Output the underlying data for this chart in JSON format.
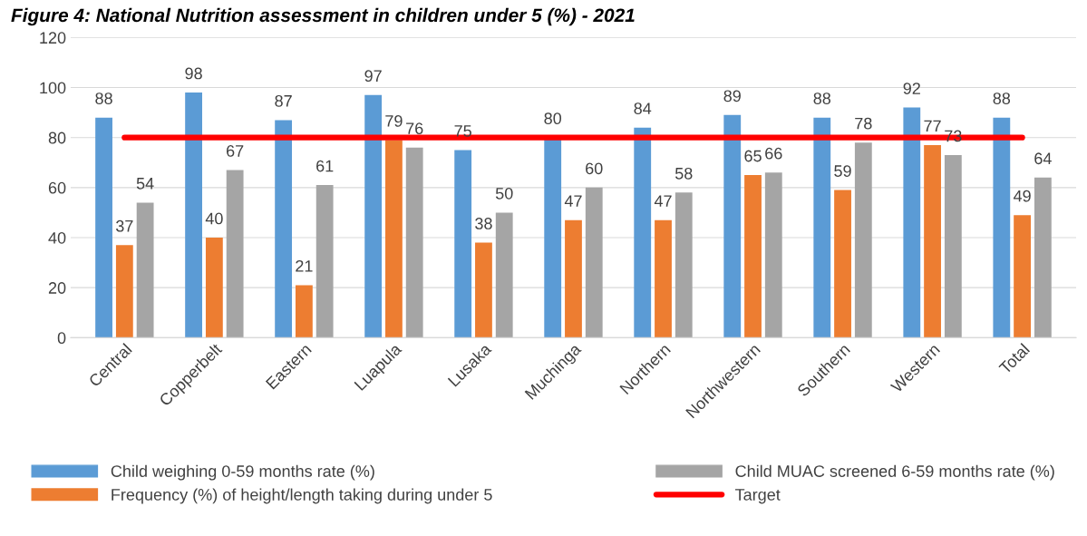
{
  "chart_data": {
    "type": "bar",
    "title": "Figure 4: National Nutrition assessment in children under 5 (%) - 2021",
    "categories": [
      "Central",
      "Copperbelt",
      "Eastern",
      "Luapula",
      "Lusaka",
      "Muchinga",
      "Northern",
      "Northwestern",
      "Southern",
      "Western",
      "Total"
    ],
    "series": [
      {
        "name": "Child weighing 0-59 months rate (%)",
        "color": "#5b9bd5",
        "values": [
          88,
          98,
          87,
          97,
          75,
          80,
          84,
          89,
          88,
          92,
          88
        ],
        "value_labels": [
          "88",
          "98",
          "87",
          "97",
          "75",
          "80",
          "84",
          "89",
          "88",
          "92",
          "88"
        ]
      },
      {
        "name": "Frequency (%) of height/length taking during under 5",
        "color": "#ed7d31",
        "values": [
          37,
          40,
          21,
          79,
          38,
          47,
          47,
          65,
          59,
          77,
          49
        ],
        "value_labels": [
          "37",
          "40",
          "21",
          "79",
          "38",
          "47",
          "47",
          "65",
          "59",
          "77",
          "49"
        ]
      },
      {
        "name": "Child MUAC screened 6-59 months rate (%)",
        "color": "#a5a5a5",
        "values": [
          54,
          67,
          61,
          76,
          50,
          60,
          58,
          66,
          78,
          73,
          64
        ],
        "value_labels": [
          "54",
          "67",
          "61",
          "76",
          "50",
          "60",
          "58",
          "66",
          "78",
          "73",
          "64"
        ]
      },
      {
        "name": "Target",
        "type": "line",
        "color": "#ff0000",
        "values": [
          80,
          80,
          80,
          80,
          80,
          80,
          80,
          80,
          80,
          80,
          80
        ]
      }
    ],
    "ylim": [
      0,
      120
    ],
    "yticks": [
      0,
      20,
      40,
      60,
      80,
      100,
      120
    ],
    "grid": "y",
    "legend": "bottom"
  }
}
